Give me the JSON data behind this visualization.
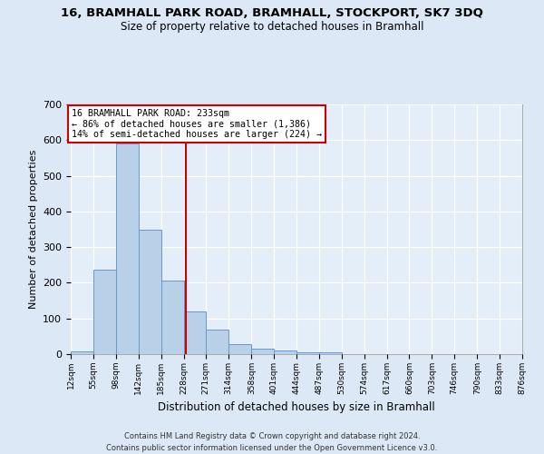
{
  "title": "16, BRAMHALL PARK ROAD, BRAMHALL, STOCKPORT, SK7 3DQ",
  "subtitle": "Size of property relative to detached houses in Bramhall",
  "xlabel": "Distribution of detached houses by size in Bramhall",
  "ylabel": "Number of detached properties",
  "bar_color": "#b8d0e8",
  "bar_edge_color": "#6699cc",
  "background_color": "#dce8f5",
  "plot_bg_color": "#e4eef8",
  "grid_color": "#ffffff",
  "vline_x": 233,
  "vline_color": "#cc0000",
  "annotation_box_edgecolor": "#cc0000",
  "annotation_line1": "16 BRAMHALL PARK ROAD: 233sqm",
  "annotation_line2": "← 86% of detached houses are smaller (1,386)",
  "annotation_line3": "14% of semi-detached houses are larger (224) →",
  "footer1": "Contains HM Land Registry data © Crown copyright and database right 2024.",
  "footer2": "Contains public sector information licensed under the Open Government Licence v3.0.",
  "bin_edges": [
    12,
    55,
    98,
    142,
    185,
    228,
    271,
    314,
    358,
    401,
    444,
    487,
    530,
    574,
    617,
    660,
    703,
    746,
    790,
    833,
    876
  ],
  "bin_counts": [
    7,
    238,
    590,
    350,
    206,
    119,
    70,
    27,
    15,
    10,
    6,
    5,
    0,
    0,
    0,
    0,
    0,
    0,
    0,
    0
  ],
  "yticks": [
    0,
    100,
    200,
    300,
    400,
    500,
    600,
    700
  ],
  "ylim": [
    0,
    700
  ],
  "xlim": [
    12,
    876
  ]
}
